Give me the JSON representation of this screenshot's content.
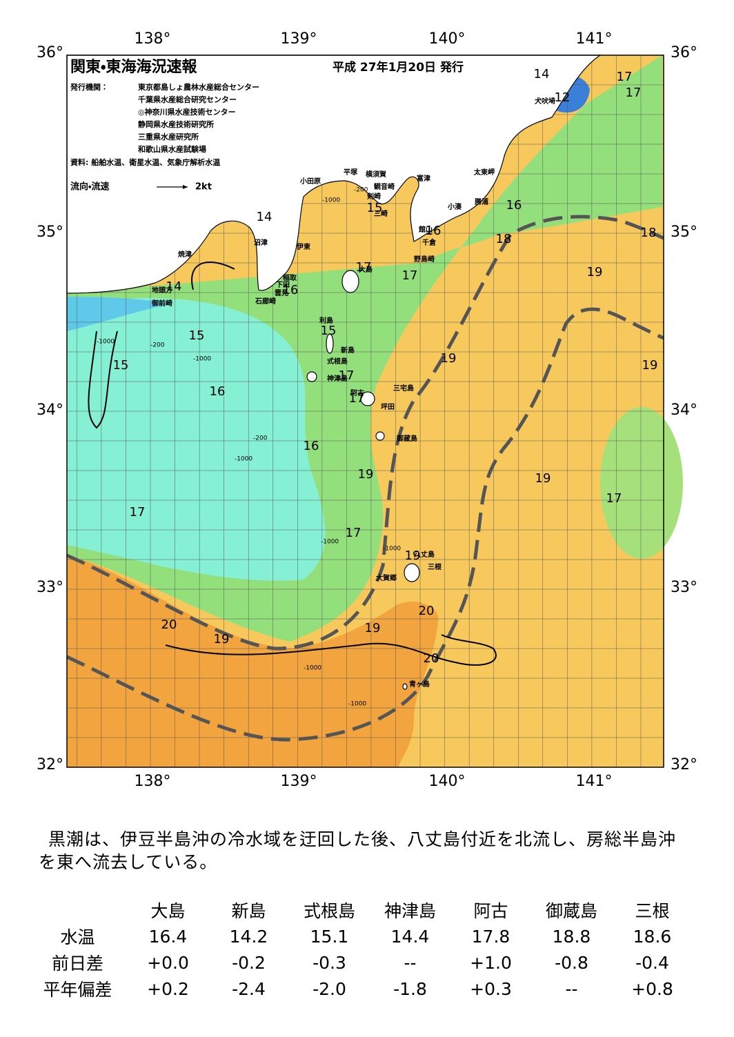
{
  "header": {
    "title": "関東・東海海況速報",
    "date": "平成 27年1月20日 発行",
    "issuer_label": "発行機関：",
    "issuers": [
      "東京都島しょ農林水産総合センター",
      "千葉県水産総合研究センター",
      "◎神奈川県水産技術センター",
      "静岡県水産技術研究所",
      "三重県水産研究所",
      "和歌山県水産試験場"
    ],
    "source": "資料: 船舶水温、衛星水温、気象庁解析水温",
    "flow_label": "流向・流速",
    "flow_scale": "2kt"
  },
  "axes": {
    "lon": [
      "138°",
      "139°",
      "140°",
      "141°"
    ],
    "lat": [
      "36°",
      "35°",
      "34°",
      "33°",
      "32°"
    ]
  },
  "map": {
    "contour_labels": [
      "14",
      "12",
      "17",
      "17",
      "14",
      "16",
      "16",
      "18",
      "18",
      "15",
      "19",
      "17",
      "17",
      "16",
      "14",
      "15",
      "15",
      "15",
      "19",
      "19",
      "16",
      "17",
      "17",
      "16",
      "19",
      "19",
      "17",
      "17",
      "17",
      "19",
      "20",
      "20",
      "19",
      "19",
      "20"
    ],
    "depth_labels": [
      "-1000",
      "-200",
      "-1000",
      "-200",
      "-1000",
      "-1000",
      "-200",
      "-1000",
      "-1000",
      "-1000",
      "-1000"
    ],
    "places": [
      "犬吠埼",
      "太東岬",
      "勝浦",
      "小湊",
      "富津",
      "横須賀",
      "平塚",
      "小田原",
      "観音崎",
      "剣崎",
      "三崎",
      "館山",
      "千倉",
      "野島崎",
      "沼津",
      "伊東",
      "焼津",
      "稲取",
      "下田",
      "雲見",
      "石廊崎",
      "地頭方",
      "御前崎",
      "大島",
      "利島",
      "新島",
      "式根島",
      "神津島",
      "阿古",
      "三宅島",
      "坪田",
      "御蔵島",
      "八丈島",
      "三根",
      "大賀郷",
      "青ヶ島"
    ]
  },
  "summary": "黒潮は、伊豆半島沖の冷水域を迂回した後、八丈島付近を北流し、房総半島沖を東へ流去している。",
  "table": {
    "columns": [
      "大島",
      "新島",
      "式根島",
      "神津島",
      "阿古",
      "御蔵島",
      "三根"
    ],
    "rows": [
      {
        "label": "水温",
        "cells": [
          "16.4",
          "14.2",
          "15.1",
          "14.4",
          "17.8",
          "18.8",
          "18.6"
        ]
      },
      {
        "label": "前日差",
        "cells": [
          "+0.0",
          "-0.2",
          "-0.3",
          "--",
          "+1.0",
          "-0.8",
          "-0.4"
        ]
      },
      {
        "label": "平年偏差",
        "cells": [
          "+0.2",
          "-2.4",
          "-2.0",
          "-1.8",
          "+0.3",
          "--",
          "+0.8"
        ]
      }
    ]
  }
}
